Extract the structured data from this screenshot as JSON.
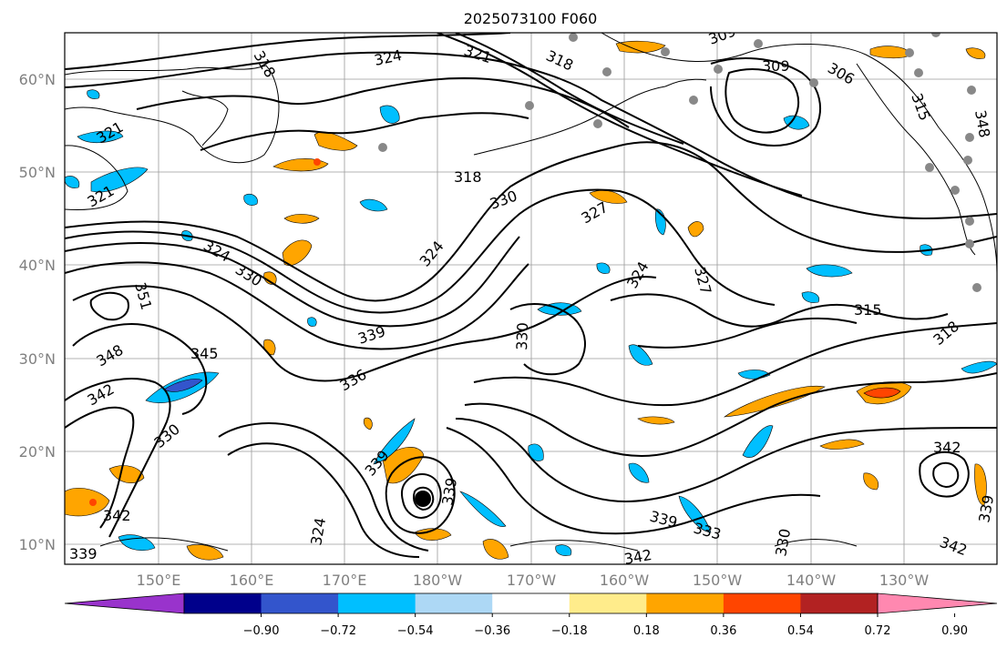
{
  "title": "2025073100 F060",
  "lat_labels": [
    "60°N",
    "50°N",
    "40°N",
    "30°N",
    "20°N",
    "10°N"
  ],
  "lon_labels": [
    "150°E",
    "160°E",
    "170°E",
    "180°W",
    "170°W",
    "160°W",
    "150°W",
    "140°W",
    "130°W"
  ],
  "colorbar": {
    "colors": [
      "#9933cc",
      "#00008b",
      "#3355cc",
      "#00bfff",
      "#add8f5",
      "#ffffff",
      "#ffec8b",
      "#ffa500",
      "#ff4500",
      "#b22222",
      "#ff88b0"
    ],
    "labels": [
      "−0.90",
      "−0.72",
      "−0.54",
      "−0.36",
      "−0.18",
      "0.18",
      "0.36",
      "0.54",
      "0.72",
      "0.90"
    ]
  },
  "contour_labels": [
    "318",
    "324",
    "321",
    "318",
    "309",
    "309",
    "306",
    "315",
    "321",
    "318",
    "321",
    "324",
    "330",
    "351",
    "348",
    "345",
    "342",
    "330",
    "339",
    "336",
    "324",
    "330",
    "327",
    "315",
    "318",
    "342",
    "342",
    "339",
    "324",
    "339",
    "333",
    "330",
    "336",
    "339",
    "342",
    "312",
    "339"
  ],
  "stations": [
    "s1",
    "s2",
    "s3",
    "s4",
    "s5",
    "s6",
    "s7",
    "s8",
    "s9",
    "s10",
    "s11",
    "s12",
    "s13",
    "s14",
    "s15",
    "s16",
    "s17",
    "s18",
    "s19",
    "s20",
    "s21"
  ],
  "center_marker": "storm-center"
}
